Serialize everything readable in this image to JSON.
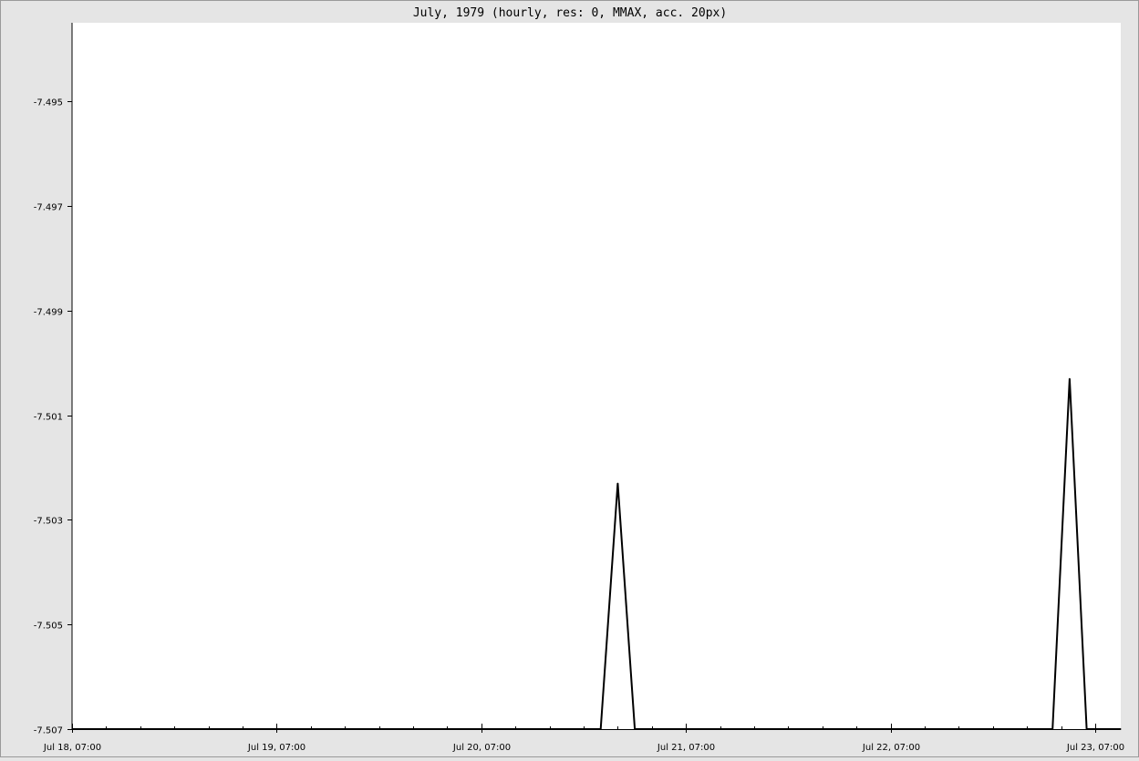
{
  "chart_data": {
    "type": "line",
    "title": "July, 1979 (hourly, res: 0, MMAX, acc. 20px)",
    "xlabel": "",
    "ylabel": "",
    "x_unit": "hour",
    "x_ticks": [
      "Jul 18, 07:00",
      "Jul 19, 07:00",
      "Jul 20, 07:00",
      "Jul 21, 07:00",
      "Jul 22, 07:00",
      "Jul 23, 07:00"
    ],
    "xlim": [
      "1979-07-18T07:00",
      "1979-07-23T10:00"
    ],
    "y_ticks": [
      "-7.495",
      "-7.497",
      "-7.499",
      "-7.501",
      "-7.503",
      "-7.505",
      "-7.507"
    ],
    "ylim": [
      -7.507,
      -7.4935
    ],
    "grid": false,
    "series": [
      {
        "color": "#000000",
        "points": [
          {
            "x": "1979-07-18T07:00",
            "y": -7.507
          },
          {
            "x": "1979-07-20T21:00",
            "y": -7.507
          },
          {
            "x": "1979-07-20T23:00",
            "y": -7.5023
          },
          {
            "x": "1979-07-21T01:00",
            "y": -7.507
          },
          {
            "x": "1979-07-23T02:00",
            "y": -7.507
          },
          {
            "x": "1979-07-23T04:00",
            "y": -7.5003
          },
          {
            "x": "1979-07-23T06:00",
            "y": -7.507
          },
          {
            "x": "1979-07-23T10:00",
            "y": -7.507
          }
        ]
      }
    ]
  }
}
